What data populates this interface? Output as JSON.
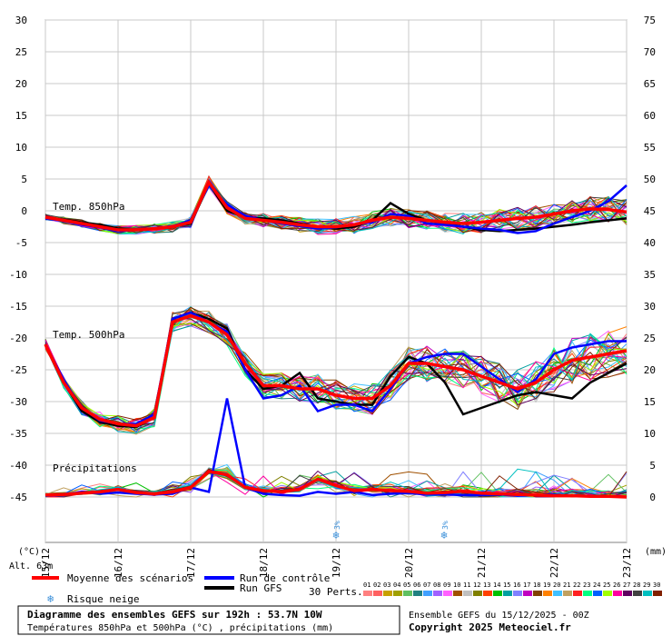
{
  "chart_data": {
    "type": "line",
    "x": [
      "15/12",
      "16/12",
      "17/12",
      "18/12",
      "19/12",
      "20/12",
      "21/12",
      "22/12",
      "23/12"
    ],
    "left_axis": {
      "unit": "(°C)",
      "ticks": [
        30,
        25,
        20,
        15,
        10,
        5,
        0,
        -5,
        -10,
        -15,
        -20,
        -25,
        -30,
        -35,
        -40,
        -45
      ],
      "range": [
        -45,
        30
      ]
    },
    "right_axis": {
      "unit": "(mm)",
      "ticks": [
        75,
        70,
        65,
        60,
        55,
        50,
        45,
        40,
        35,
        30,
        25,
        20,
        15,
        10,
        5,
        0
      ],
      "range": [
        0,
        75
      ]
    },
    "grid": true,
    "panel_labels": {
      "t850": "Temp. 850hPa",
      "t500": "Temp. 500hPa",
      "precip": "Précipitations"
    },
    "snow_risk_markers": [
      {
        "date": "19/12",
        "label": "3%"
      },
      {
        "date": "20/12+",
        "label": "3%"
      }
    ],
    "series": [
      {
        "name": "Moyenne des scénarios",
        "color": "#ff0000",
        "t850": [
          -1,
          -1.5,
          -2,
          -2.5,
          -3,
          -3,
          -2.8,
          -2.5,
          -1.8,
          4.5,
          0.5,
          -1.2,
          -1.5,
          -1.8,
          -2.2,
          -2.5,
          -2.5,
          -2.2,
          -1.5,
          -1,
          -1.2,
          -1.5,
          -1.8,
          -2,
          -1.8,
          -1.5,
          -1.2,
          -1,
          -0.5,
          0,
          0.3,
          0.2,
          -0.2
        ],
        "t500": [
          -21,
          -27,
          -31,
          -32.8,
          -33.5,
          -33.8,
          -32.5,
          -17.5,
          -16.5,
          -17.5,
          -19.5,
          -24,
          -27.5,
          -27.5,
          -28,
          -28,
          -29,
          -29.5,
          -29.5,
          -27.5,
          -24,
          -24,
          -24.5,
          -25,
          -26,
          -27,
          -28,
          -27,
          -25,
          -23.5,
          -23,
          -22.5,
          -22
        ],
        "precip": [
          0.3,
          0.4,
          0.6,
          0.8,
          1.2,
          0.7,
          0.5,
          0.8,
          1.5,
          4,
          3.5,
          1.5,
          1,
          0.8,
          1.2,
          2.8,
          1.8,
          1,
          1.2,
          1,
          0.9,
          0.6,
          0.7,
          0.9,
          0.6,
          0.5,
          0.4,
          0.3,
          0.2,
          0.2,
          0.1,
          0.1,
          0
        ]
      },
      {
        "name": "Run de contrôle",
        "color": "#0000ff",
        "t850": [
          -1.2,
          -1.6,
          -2.2,
          -2.6,
          -3.2,
          -3,
          -2.8,
          -2.4,
          -1.5,
          4,
          1,
          -0.8,
          -1.5,
          -2,
          -2.4,
          -2.8,
          -2.6,
          -2.2,
          -1.8,
          -0.5,
          -0.8,
          -2,
          -2.2,
          -2.5,
          -2.8,
          -3,
          -3.5,
          -3.2,
          -2,
          -1,
          0,
          1.5,
          4
        ],
        "t500": [
          -21,
          -26.5,
          -31,
          -33,
          -33.5,
          -33.5,
          -32,
          -17,
          -16,
          -17.5,
          -19,
          -25,
          -29.5,
          -29,
          -27.5,
          -31.5,
          -30.5,
          -30.5,
          -31.5,
          -28,
          -24,
          -23,
          -22.5,
          -22.5,
          -24.5,
          -26.5,
          -28.5,
          -26.5,
          -22.5,
          -21.5,
          -21,
          -20.5,
          -20.5
        ],
        "precip": [
          0.2,
          0.3,
          0.8,
          0.5,
          0.7,
          0.5,
          0.4,
          0.5,
          1.5,
          0.8,
          15.5,
          1.5,
          0.5,
          0.3,
          0.2,
          0.8,
          0.5,
          0.8,
          0.3,
          0.5,
          0.6,
          0.4,
          0.4,
          0.3,
          0.3,
          0.4,
          0.2,
          0.3,
          0.4,
          0.2,
          0.2,
          0.1,
          0
        ]
      },
      {
        "name": "Run GFS",
        "color": "#000000",
        "t850": [
          -1,
          -1.4,
          -1.8,
          -2.2,
          -2.8,
          -3,
          -2.8,
          -2.5,
          -2,
          4.2,
          0,
          -1,
          -1.2,
          -1.5,
          -2,
          -2.5,
          -2.8,
          -2.5,
          -1.5,
          1.2,
          -0.5,
          -1.5,
          -2,
          -2.5,
          -3,
          -3.2,
          -3,
          -2.8,
          -2.5,
          -2.2,
          -1.8,
          -1.5,
          -1.2
        ],
        "t500": [
          -21,
          -27,
          -31.5,
          -33.2,
          -33.8,
          -34,
          -32.5,
          -17,
          -16,
          -17,
          -18.5,
          -25,
          -28,
          -27.5,
          -25.5,
          -29.5,
          -30,
          -30.5,
          -30.5,
          -26,
          -23,
          -24,
          -27,
          -32,
          -31,
          -30,
          -29,
          -28.5,
          -29,
          -29.5,
          -27,
          -25.5,
          -24
        ]
      },
      {
        "name": "Risque neige",
        "color": "#3a8fd9"
      }
    ]
  },
  "legend": {
    "items": [
      "Moyenne des scénarios",
      "Run de contrôle",
      "Run GFS",
      "Risque neige"
    ],
    "perts_label": "30 Perts.",
    "perts_numbers": [
      "01",
      "02",
      "03",
      "04",
      "05",
      "06",
      "07",
      "08",
      "09",
      "10",
      "11",
      "12",
      "13",
      "14",
      "15",
      "16",
      "17",
      "18",
      "19",
      "20",
      "21",
      "22",
      "23",
      "24",
      "25",
      "26",
      "27",
      "28",
      "29",
      "30"
    ],
    "perts_colors": [
      "#ff8080",
      "#ff6060",
      "#c8a000",
      "#a0a000",
      "#60c060",
      "#208080",
      "#40a0ff",
      "#a060ff",
      "#ff60ff",
      "#a05000",
      "#c0c0c0",
      "#808000",
      "#ff4000",
      "#00c000",
      "#00a0a0",
      "#8080ff",
      "#c000c0",
      "#804000",
      "#ff8000",
      "#40c0ff",
      "#c0a060",
      "#ff2020",
      "#00ff80",
      "#0060ff",
      "#a0ff00",
      "#ff00a0",
      "#600060",
      "#404040",
      "#00c0c0",
      "#802000"
    ]
  },
  "alt_label": "Alt. 63m",
  "footer": {
    "title": "Diagramme des ensembles GEFS sur 192h : 53.7N 10W",
    "subtitle": "Températures 850hPa et 500hPa (°C) , précipitations (mm)",
    "ensemble": "Ensemble GEFS du 15/12/2025 - 00Z",
    "copyright": "Copyright 2025 Meteociel.fr"
  }
}
